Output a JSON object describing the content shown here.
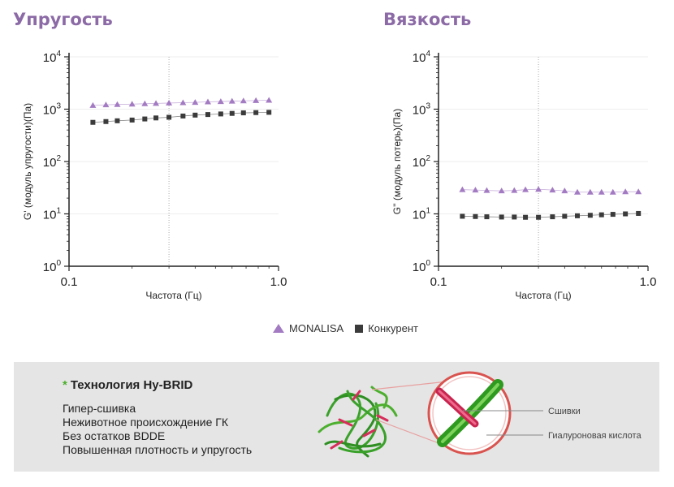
{
  "chart_data": [
    {
      "type": "scatter",
      "title": "Упругость",
      "xlabel": "Частота (Гц)",
      "ylabel": "G' (модуль упругости)(Па)",
      "xscale": "log",
      "yscale": "log",
      "xlim": [
        0.1,
        1.0
      ],
      "ylim": [
        1,
        10000
      ],
      "x_ticks": [
        "0.1",
        "1.0"
      ],
      "y_ticks": [
        "10",
        "10",
        "10",
        "10",
        "10"
      ],
      "y_tick_exponents": [
        "0",
        "1",
        "2",
        "3",
        "4"
      ],
      "reference_line_x": 0.3,
      "x": [
        0.13,
        0.15,
        0.17,
        0.2,
        0.23,
        0.26,
        0.3,
        0.35,
        0.4,
        0.46,
        0.53,
        0.6,
        0.68,
        0.78,
        0.9
      ],
      "series": [
        {
          "name": "MONALISA",
          "marker": "triangle",
          "color": "#a37bc2",
          "values": [
            1180,
            1210,
            1230,
            1250,
            1270,
            1290,
            1310,
            1330,
            1350,
            1380,
            1400,
            1420,
            1440,
            1460,
            1480
          ]
        },
        {
          "name": "Конкурент",
          "marker": "square",
          "color": "#3b3b3b",
          "values": [
            560,
            580,
            600,
            620,
            650,
            680,
            700,
            740,
            770,
            790,
            810,
            830,
            850,
            860,
            870
          ]
        }
      ]
    },
    {
      "type": "scatter",
      "title": "Вязкость",
      "xlabel": "Частота (Гц)",
      "ylabel": "G'' (модуль потерь)(Па)",
      "xscale": "log",
      "yscale": "log",
      "xlim": [
        0.1,
        1.0
      ],
      "ylim": [
        1,
        10000
      ],
      "x_ticks": [
        "0.1",
        "1.0"
      ],
      "y_ticks": [
        "10",
        "10",
        "10",
        "10",
        "10"
      ],
      "y_tick_exponents": [
        "0",
        "1",
        "2",
        "3",
        "4"
      ],
      "reference_line_x": 0.3,
      "x": [
        0.13,
        0.15,
        0.17,
        0.2,
        0.23,
        0.26,
        0.3,
        0.35,
        0.4,
        0.46,
        0.53,
        0.6,
        0.68,
        0.78,
        0.9
      ],
      "series": [
        {
          "name": "MONALISA",
          "marker": "triangle",
          "color": "#a37bc2",
          "values": [
            29,
            28.5,
            28,
            27.5,
            28,
            29,
            29.5,
            28.5,
            27.5,
            26,
            26,
            26,
            26,
            26.5,
            26.5
          ]
        },
        {
          "name": "Конкурент",
          "marker": "square",
          "color": "#3b3b3b",
          "values": [
            9,
            8.9,
            8.8,
            8.7,
            8.7,
            8.6,
            8.6,
            8.8,
            9,
            9.2,
            9.4,
            9.6,
            9.8,
            10,
            10.2
          ]
        }
      ]
    }
  ],
  "legend": {
    "items": [
      {
        "label": "MONALISA",
        "marker": "triangle",
        "color": "#a37bc2"
      },
      {
        "label": "Конкурент",
        "marker": "square",
        "color": "#3b3b3b"
      }
    ]
  },
  "panel": {
    "star": "*",
    "title": "Технология Hy-BRID",
    "lines": [
      "Гипер-сшивка",
      "Неживотное происхождение ГК",
      "Без остатков BDDE",
      "Повышенная плотность и упругость"
    ],
    "callout_crosslinks": "Сшивки",
    "callout_ha": "Гиалуроновая кислота"
  },
  "colors": {
    "title": "#8b6aa6",
    "panel_bg": "#e5e5e5",
    "accent_green": "#4caf2e",
    "accent_red": "#d62d5a"
  }
}
